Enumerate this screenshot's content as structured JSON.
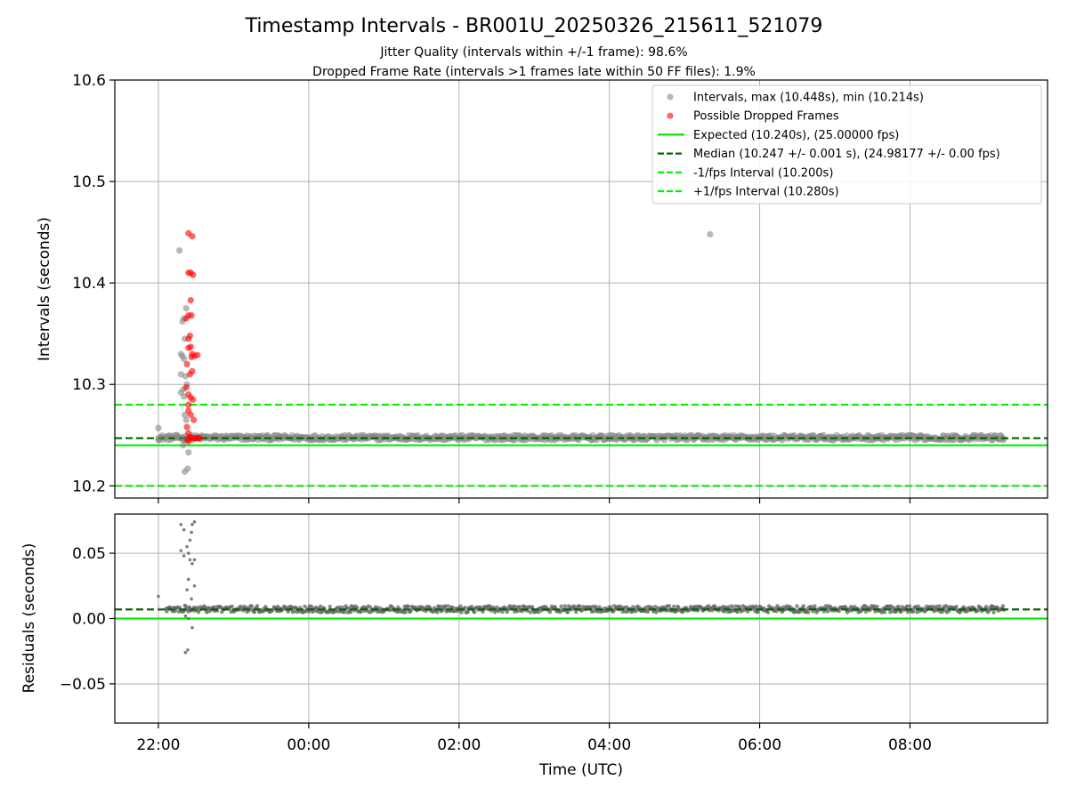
{
  "chart_data": [
    {
      "panel": "intervals",
      "type": "scatter",
      "title": "Timestamp Intervals - BR001U_20250326_215611_521079",
      "subtitle_lines": [
        "Jitter Quality (intervals within +/-1 frame): 98.6%",
        "Dropped Frame Rate (intervals >1 frames late within 50 FF files): 1.9%"
      ],
      "xlabel": "",
      "ylabel": "Intervals (seconds)",
      "x_unit": "hours since 00:00 UTC (2025-03-26/27); ticks labelled HH:MM",
      "xlim": [
        -2.58,
        9.83
      ],
      "ylim": [
        10.188,
        10.6
      ],
      "yticks": [
        10.2,
        10.3,
        10.4,
        10.5,
        10.6
      ],
      "yticklabels": [
        "10.2",
        "10.3",
        "10.4",
        "10.5",
        "10.6"
      ],
      "grid": true,
      "legend_position": "upper-right",
      "legend": [
        {
          "label": "Intervals, max (10.448s), min (10.214s)",
          "marker": "dot",
          "color": "#888888"
        },
        {
          "label": "Possible Dropped Frames",
          "marker": "dot",
          "color": "#ff0000"
        },
        {
          "label": "Expected (10.240s), (25.00000 fps)",
          "marker": "solid-line",
          "color": "#00ee00"
        },
        {
          "label": "Median (10.247 +/- 0.001 s), (24.98177 +/- 0.00 fps)",
          "marker": "dashed-line",
          "color": "#006400"
        },
        {
          "label": "-1/fps Interval (10.200s)",
          "marker": "dashed-line",
          "color": "#00ee00"
        },
        {
          "label": "+1/fps Interval (10.280s)",
          "marker": "dashed-line",
          "color": "#00ee00"
        }
      ],
      "hlines": [
        {
          "name": "Expected",
          "y": 10.24,
          "style": "solid",
          "color": "#00ee00"
        },
        {
          "name": "Median",
          "y": 10.247,
          "style": "dashed",
          "color": "#006400"
        },
        {
          "name": "-1/fps",
          "y": 10.2,
          "style": "dashed",
          "color": "#00ee00"
        },
        {
          "name": "+1/fps",
          "y": 10.28,
          "style": "dashed",
          "color": "#00ee00"
        }
      ],
      "series": [
        {
          "name": "Intervals",
          "color": "#888888",
          "band": {
            "x_start": -2.0,
            "x_end": 9.25,
            "y_center": 10.2475,
            "y_halfwidth": 0.0025
          },
          "points": [
            [
              -2.0,
              10.257
            ],
            [
              -2.0,
              10.247
            ],
            [
              -1.9,
              10.247
            ],
            [
              -1.75,
              10.248
            ],
            [
              -1.72,
              10.432
            ],
            [
              -1.68,
              10.362
            ],
            [
              -1.66,
              10.365
            ],
            [
              -1.63,
              10.375
            ],
            [
              -1.65,
              10.345
            ],
            [
              -1.7,
              10.33
            ],
            [
              -1.68,
              10.328
            ],
            [
              -1.66,
              10.325
            ],
            [
              -1.7,
              10.31
            ],
            [
              -1.64,
              10.308
            ],
            [
              -1.67,
              10.295
            ],
            [
              -1.7,
              10.292
            ],
            [
              -1.66,
              10.288
            ],
            [
              -1.62,
              10.3
            ],
            [
              -1.65,
              10.27
            ],
            [
              -1.63,
              10.265
            ],
            [
              -1.66,
              10.245
            ],
            [
              -1.67,
              10.24
            ],
            [
              -1.6,
              10.233
            ],
            [
              -1.65,
              10.214
            ],
            [
              -1.61,
              10.217
            ],
            [
              5.34,
              10.448
            ],
            [
              6.8,
              10.249
            ],
            [
              4.1,
              10.249
            ]
          ]
        },
        {
          "name": "Possible Dropped Frames",
          "color": "#ff0000",
          "points": [
            [
              -1.6,
              10.449
            ],
            [
              -1.55,
              10.446
            ],
            [
              -1.6,
              10.41
            ],
            [
              -1.57,
              10.41
            ],
            [
              -1.54,
              10.408
            ],
            [
              -1.57,
              10.383
            ],
            [
              -1.6,
              10.368
            ],
            [
              -1.56,
              10.368
            ],
            [
              -1.63,
              10.365
            ],
            [
              -1.58,
              10.348
            ],
            [
              -1.6,
              10.345
            ],
            [
              -1.6,
              10.336
            ],
            [
              -1.57,
              10.337
            ],
            [
              -1.55,
              10.33
            ],
            [
              -1.52,
              10.328
            ],
            [
              -1.48,
              10.329
            ],
            [
              -1.56,
              10.327
            ],
            [
              -1.62,
              10.32
            ],
            [
              -1.55,
              10.313
            ],
            [
              -1.58,
              10.31
            ],
            [
              -1.63,
              10.297
            ],
            [
              -1.6,
              10.29
            ],
            [
              -1.57,
              10.287
            ],
            [
              -1.54,
              10.285
            ],
            [
              -1.6,
              10.28
            ],
            [
              -1.6,
              10.274
            ],
            [
              -1.57,
              10.27
            ],
            [
              -1.53,
              10.265
            ],
            [
              -1.62,
              10.258
            ],
            [
              -1.6,
              10.252
            ],
            [
              -1.58,
              10.248
            ],
            [
              -1.55,
              10.247
            ],
            [
              -1.52,
              10.247
            ],
            [
              -1.49,
              10.247
            ],
            [
              -1.47,
              10.247
            ],
            [
              -1.45,
              10.247
            ],
            [
              -1.62,
              10.246
            ],
            [
              -1.6,
              10.244
            ]
          ]
        }
      ]
    },
    {
      "panel": "residuals",
      "type": "scatter",
      "xlabel": "Time (UTC)",
      "ylabel": "Residuals (seconds)",
      "xlim": [
        -2.58,
        9.83
      ],
      "ylim": [
        -0.08,
        0.08
      ],
      "yticks": [
        -0.05,
        0.0,
        0.05
      ],
      "yticklabels": [
        "−0.05",
        "0.00",
        "0.05"
      ],
      "xticks": [
        -2,
        0,
        2,
        4,
        6,
        8
      ],
      "xticklabels": [
        "22:00",
        "00:00",
        "02:00",
        "04:00",
        "06:00",
        "08:00"
      ],
      "grid": true,
      "hlines": [
        {
          "name": "Zero",
          "y": 0.0,
          "style": "solid",
          "color": "#00ee00"
        },
        {
          "name": "Median offset",
          "y": 0.007,
          "style": "dashed",
          "color": "#006400"
        }
      ],
      "series": [
        {
          "name": "Residuals",
          "color": "#666666",
          "band": {
            "x_start": -1.9,
            "x_end": 9.25,
            "y_center": 0.0072,
            "y_halfwidth": 0.0025
          },
          "points": [
            [
              -2.0,
              0.017
            ],
            [
              -1.98,
              0.007
            ],
            [
              -1.9,
              0.007
            ],
            [
              -1.8,
              0.008
            ],
            [
              -1.7,
              0.072
            ],
            [
              -1.66,
              0.068
            ],
            [
              -1.62,
              0.055
            ],
            [
              -1.58,
              0.06
            ],
            [
              -1.55,
              0.072
            ],
            [
              -1.52,
              0.074
            ],
            [
              -1.56,
              0.066
            ],
            [
              -1.6,
              0.05
            ],
            [
              -1.66,
              0.048
            ],
            [
              -1.7,
              0.052
            ],
            [
              -1.58,
              0.045
            ],
            [
              -1.55,
              0.042
            ],
            [
              -1.52,
              0.045
            ],
            [
              -1.6,
              0.03
            ],
            [
              -1.62,
              0.022
            ],
            [
              -1.56,
              0.015
            ],
            [
              -1.52,
              0.025
            ],
            [
              -1.58,
              0.008
            ],
            [
              -1.68,
              0.005
            ],
            [
              -1.64,
              0.002
            ],
            [
              -1.6,
              0.0
            ],
            [
              -1.55,
              -0.007
            ],
            [
              -1.64,
              -0.026
            ],
            [
              -1.61,
              -0.024
            ],
            [
              -1.65,
              0.01
            ],
            [
              -1.5,
              0.008
            ]
          ]
        }
      ]
    }
  ]
}
